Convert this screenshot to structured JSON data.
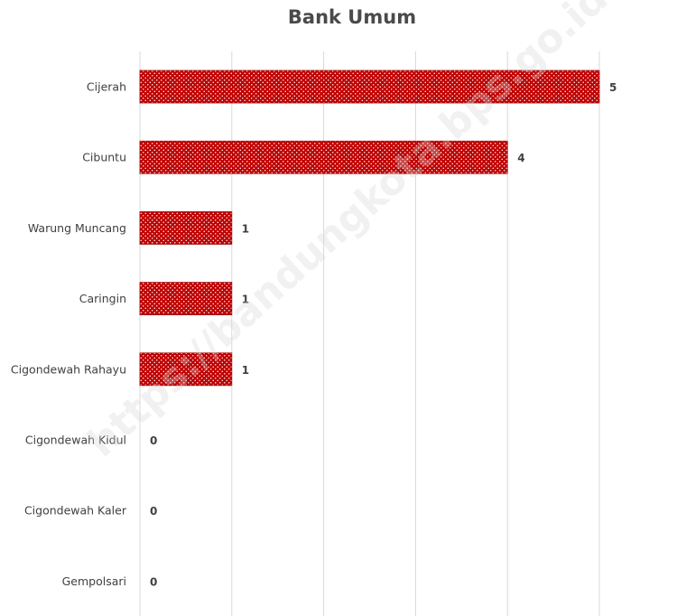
{
  "chart_data": {
    "type": "bar",
    "orientation": "horizontal",
    "title": "Bank Umum",
    "categories": [
      "Cijerah",
      "Cibuntu",
      "Warung Muncang",
      "Caringin",
      "Cigondewah Rahayu",
      "Cigondewah Kidul",
      "Cigondewah Kaler",
      "Gempolsari"
    ],
    "values": [
      5,
      4,
      1,
      1,
      1,
      0,
      0,
      0
    ],
    "xlim": [
      0,
      6
    ],
    "grid": true,
    "bar_color": "#c00000",
    "bar_pattern": "white-dots"
  },
  "watermark": "https://bandungkota.bps.go.id"
}
